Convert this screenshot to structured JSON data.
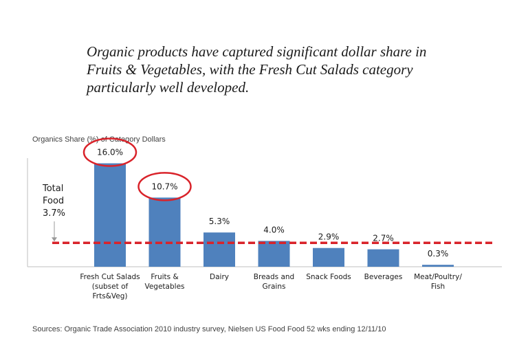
{
  "headline": "Organic products have captured significant dollar share in Fruits & Vegetables, with the Fresh Cut Salads category particularly well developed.",
  "source_note": "Sources: Organic Trade Association 2010 industry survey, Nielsen US Food Food 52 wks ending 12/11/10",
  "colors": {
    "bar": "#4f81bd",
    "reference_line": "#d9232a",
    "highlight_circle": "#d9232a",
    "axis": "#bfbfbf"
  },
  "chart_data": {
    "type": "bar",
    "title": "Organics Share (%) of Category Dollars",
    "categories": [
      [
        "Fresh Cut Salads",
        "(subset of",
        "Frts&Veg)"
      ],
      [
        "Fruits &",
        "Vegetables"
      ],
      [
        "Dairy"
      ],
      [
        "Breads and",
        "Grains"
      ],
      [
        "Snack Foods"
      ],
      [
        "Beverages"
      ],
      [
        "Meat/Poultry/",
        "Fish"
      ]
    ],
    "values": [
      16.0,
      10.7,
      5.3,
      4.0,
      2.9,
      2.7,
      0.3
    ],
    "data_labels": [
      "16.0%",
      "10.7%",
      "5.3%",
      "4.0%",
      "2.9%",
      "2.7%",
      "0.3%"
    ],
    "highlighted": [
      0,
      1
    ],
    "reference_line": {
      "value": 3.7,
      "label": [
        "Total",
        "Food",
        "3.7%"
      ],
      "style": "dashed"
    },
    "ylim": [
      0,
      16.8
    ],
    "grid": false,
    "xlabel": "",
    "ylabel": ""
  }
}
